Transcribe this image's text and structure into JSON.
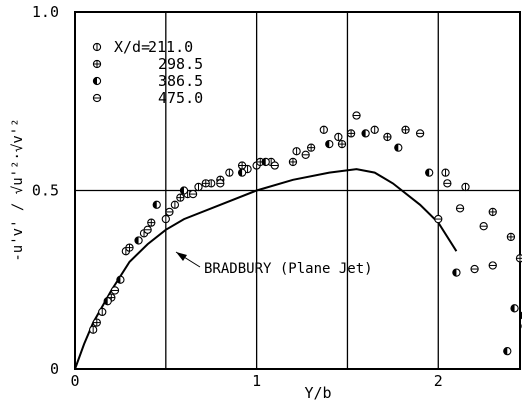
{
  "chart_data": {
    "type": "scatter",
    "xlabel": "Y/b",
    "ylabel": "-u'v' / √u'²·√v'²",
    "xlim": [
      0,
      2.45
    ],
    "ylim": [
      0,
      1.0
    ],
    "x_ticks": [
      "0",
      "1",
      "2"
    ],
    "y_ticks": [
      "0",
      "0.5",
      "1.0"
    ],
    "grid": true,
    "legend_position": "top-left",
    "legend_header": "X/d=",
    "series": [
      {
        "name": "211.0",
        "marker": "circle-vertical-bar",
        "points": [
          [
            0.1,
            0.11
          ],
          [
            0.15,
            0.16
          ],
          [
            0.28,
            0.33
          ],
          [
            0.38,
            0.38
          ],
          [
            0.5,
            0.42
          ],
          [
            0.55,
            0.46
          ],
          [
            0.62,
            0.49
          ],
          [
            0.68,
            0.51
          ],
          [
            0.75,
            0.52
          ],
          [
            0.85,
            0.55
          ],
          [
            0.95,
            0.56
          ],
          [
            1.0,
            0.57
          ],
          [
            1.08,
            0.58
          ],
          [
            1.22,
            0.61
          ],
          [
            1.37,
            0.67
          ],
          [
            1.45,
            0.65
          ],
          [
            1.65,
            0.67
          ],
          [
            2.04,
            0.55
          ],
          [
            2.15,
            0.51
          ],
          [
            2.48,
            0.12
          ]
        ]
      },
      {
        "name": "298.5",
        "marker": "circle-cross",
        "points": [
          [
            0.12,
            0.13
          ],
          [
            0.2,
            0.2
          ],
          [
            0.3,
            0.34
          ],
          [
            0.42,
            0.41
          ],
          [
            0.58,
            0.48
          ],
          [
            0.72,
            0.52
          ],
          [
            0.8,
            0.53
          ],
          [
            0.92,
            0.57
          ],
          [
            1.02,
            0.58
          ],
          [
            1.2,
            0.58
          ],
          [
            1.3,
            0.62
          ],
          [
            1.47,
            0.63
          ],
          [
            1.52,
            0.66
          ],
          [
            1.72,
            0.65
          ],
          [
            1.82,
            0.67
          ],
          [
            2.3,
            0.44
          ],
          [
            2.4,
            0.37
          ],
          [
            2.45,
            0.31
          ]
        ]
      },
      {
        "name": "386.5",
        "marker": "circle-half-filled",
        "points": [
          [
            0.18,
            0.19
          ],
          [
            0.25,
            0.25
          ],
          [
            0.35,
            0.36
          ],
          [
            0.45,
            0.46
          ],
          [
            0.6,
            0.5
          ],
          [
            0.92,
            0.55
          ],
          [
            1.05,
            0.58
          ],
          [
            1.4,
            0.63
          ],
          [
            1.6,
            0.66
          ],
          [
            1.78,
            0.62
          ],
          [
            1.95,
            0.55
          ],
          [
            2.1,
            0.27
          ],
          [
            2.42,
            0.17
          ],
          [
            2.47,
            0.15
          ],
          [
            2.38,
            0.05
          ]
        ]
      },
      {
        "name": "475.0",
        "marker": "circle-horizontal-bar",
        "points": [
          [
            0.22,
            0.22
          ],
          [
            0.4,
            0.39
          ],
          [
            0.52,
            0.44
          ],
          [
            0.65,
            0.49
          ],
          [
            0.8,
            0.52
          ],
          [
            1.1,
            0.57
          ],
          [
            1.27,
            0.6
          ],
          [
            1.55,
            0.71
          ],
          [
            1.9,
            0.66
          ],
          [
            2.0,
            0.42
          ],
          [
            2.05,
            0.52
          ],
          [
            2.12,
            0.45
          ],
          [
            2.2,
            0.28
          ],
          [
            2.3,
            0.29
          ],
          [
            2.25,
            0.4
          ]
        ]
      }
    ],
    "curve": {
      "name": "BRADBURY (Plane Jet)",
      "points": [
        [
          0.0,
          0.0
        ],
        [
          0.05,
          0.07
        ],
        [
          0.1,
          0.13
        ],
        [
          0.2,
          0.22
        ],
        [
          0.3,
          0.3
        ],
        [
          0.4,
          0.35
        ],
        [
          0.5,
          0.39
        ],
        [
          0.6,
          0.42
        ],
        [
          0.8,
          0.46
        ],
        [
          1.0,
          0.5
        ],
        [
          1.2,
          0.53
        ],
        [
          1.4,
          0.55
        ],
        [
          1.55,
          0.56
        ],
        [
          1.65,
          0.55
        ],
        [
          1.75,
          0.52
        ],
        [
          1.9,
          0.46
        ],
        [
          2.0,
          0.41
        ],
        [
          2.1,
          0.33
        ]
      ]
    }
  }
}
